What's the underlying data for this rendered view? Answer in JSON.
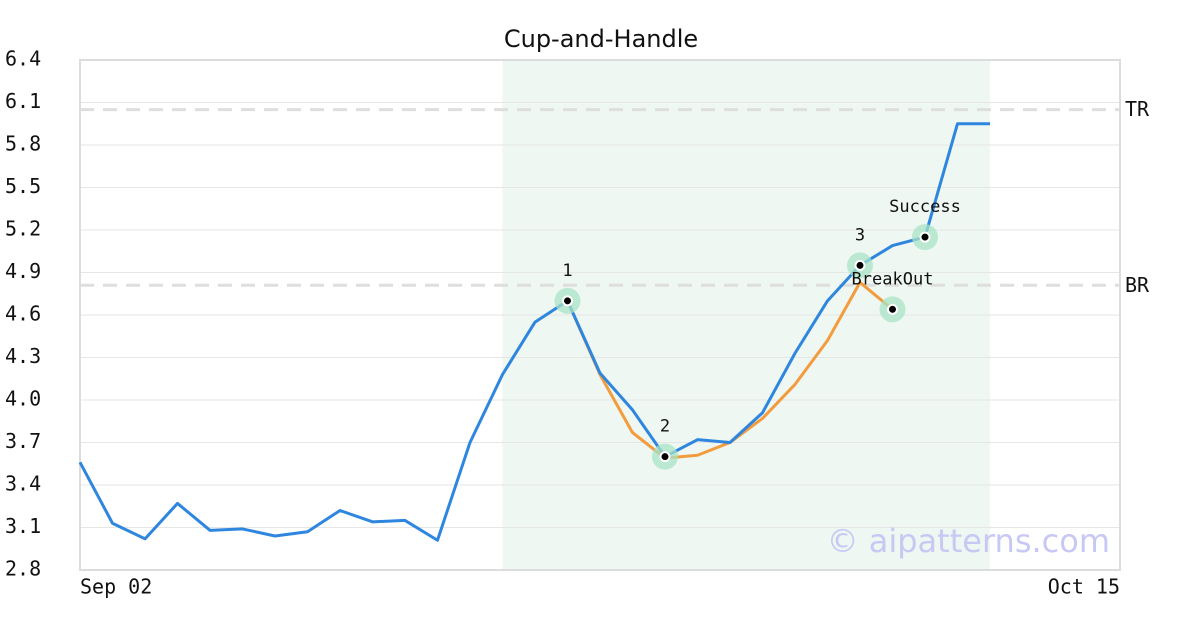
{
  "chart_data": {
    "type": "line",
    "title": "Cup-and-Handle",
    "categories": [
      "Sep 02",
      null,
      null,
      null,
      null,
      null,
      null,
      null,
      null,
      null,
      null,
      null,
      null,
      null,
      null,
      null,
      null,
      null,
      null,
      null,
      null,
      null,
      null,
      null,
      null,
      null,
      null,
      null,
      null,
      null,
      null,
      null,
      "Oct 15"
    ],
    "series": [
      {
        "color": "#2e86de",
        "values": [
          3.56,
          3.13,
          3.02,
          3.27,
          3.08,
          3.09,
          3.04,
          3.07,
          3.22,
          3.14,
          3.15,
          3.01,
          3.7,
          4.18,
          4.55,
          4.7,
          4.19,
          3.93,
          3.6,
          3.72,
          3.7,
          3.91,
          4.33,
          4.7,
          4.95,
          5.09,
          5.15,
          5.95,
          5.95,
          null,
          null,
          null,
          null
        ]
      },
      {
        "color": "#f39c3d",
        "values": [
          null,
          null,
          null,
          null,
          null,
          null,
          null,
          null,
          null,
          null,
          null,
          null,
          null,
          null,
          null,
          4.7,
          4.18,
          3.77,
          3.59,
          3.61,
          3.7,
          3.87,
          4.11,
          4.42,
          4.83,
          4.64,
          null,
          null,
          null,
          null,
          null,
          null,
          null
        ]
      }
    ],
    "ylim": [
      2.8,
      6.4
    ],
    "yticks": [
      2.8,
      3.1,
      3.4,
      3.7,
      {
        "value": 4.0,
        "label": "4.0"
      },
      4.3,
      4.6,
      4.9,
      5.2,
      5.5,
      5.8,
      6.1,
      6.4
    ],
    "grid": true,
    "highlight_range": [
      13,
      28
    ],
    "hlines": [
      {
        "label": "TR",
        "value": 6.05
      },
      {
        "label": "BR",
        "value": 4.81
      }
    ],
    "annotations": [
      {
        "text": "1",
        "x": 15,
        "y": 4.7
      },
      {
        "text": "2",
        "x": 18,
        "y": 3.6
      },
      {
        "text": "3",
        "x": 24,
        "y": 4.95
      },
      {
        "text": "BreakOut",
        "x": 25,
        "y": 4.64
      },
      {
        "text": "Success",
        "x": 26,
        "y": 5.15
      }
    ],
    "watermark": "© aipatterns.com"
  }
}
